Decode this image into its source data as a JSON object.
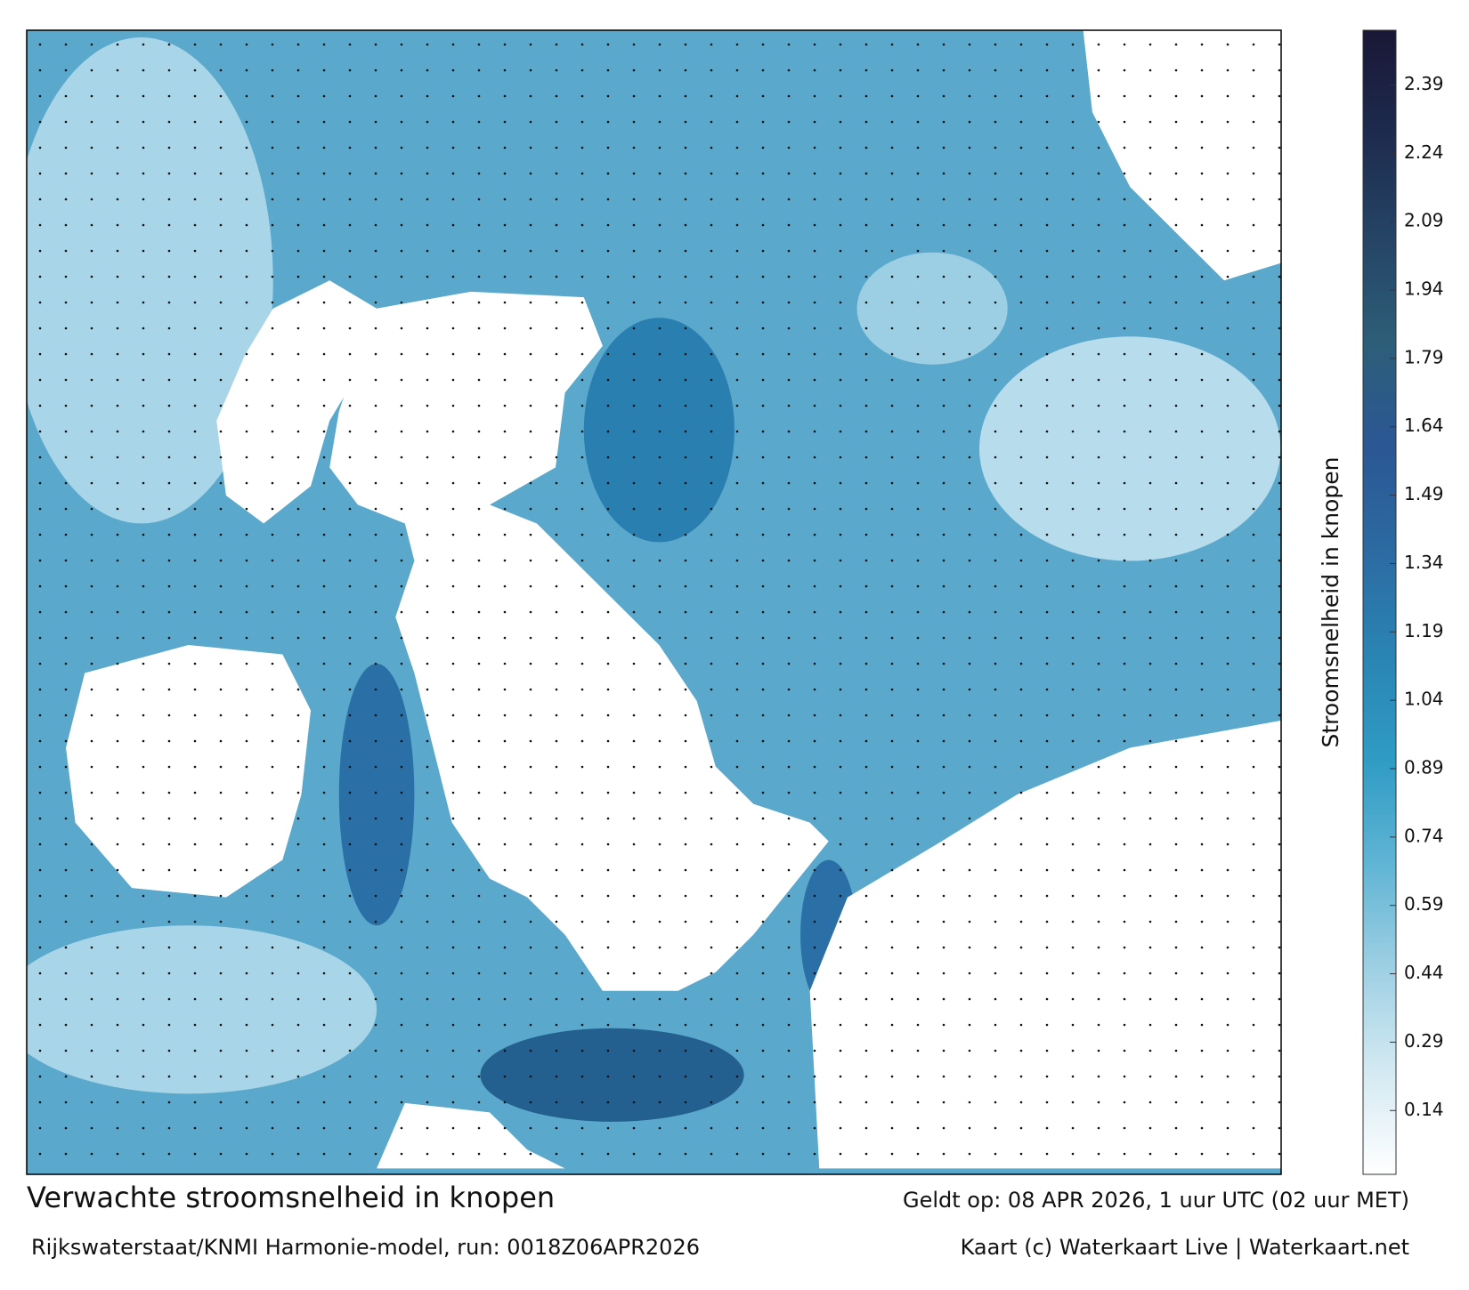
{
  "map": {
    "title": "Verwachte stroomsnelheid in knopen",
    "subtitle": "Rijkswaterstaat/KNMI Harmonie-model, run: 0018Z06APR2026",
    "valid_time": "Geldt op: 08 APR 2026, 1 uur UTC (02 uur MET)",
    "credit": "Kaart (c) Waterkaart Live | Waterkaart.net",
    "colorbar": {
      "label": "Stroomsnelheid in knopen",
      "range": [
        0,
        2.51
      ],
      "ticks": [
        0.14,
        0.29,
        0.44,
        0.59,
        0.74,
        0.89,
        1.04,
        1.19,
        1.34,
        1.49,
        1.64,
        1.79,
        1.94,
        2.09,
        2.24,
        2.39
      ],
      "colors": [
        "#ffffff",
        "#d3e9f2",
        "#9dcfe3",
        "#5fb4d4",
        "#2f9bc4",
        "#2a84b3",
        "#2c6aa2",
        "#2b5794",
        "#2d5e78",
        "#254466",
        "#1d2b4e",
        "#1a1736"
      ]
    }
  }
}
